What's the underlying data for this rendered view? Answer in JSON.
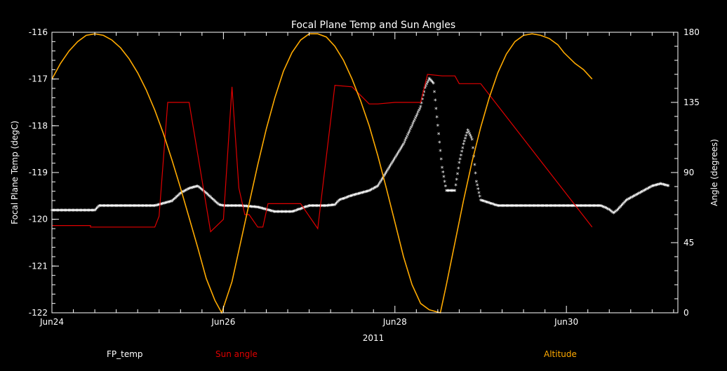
{
  "chart_data": {
    "type": "line",
    "title": "Focal Plane Temp and Sun Angles",
    "xlabel": "2011",
    "ylabel_left": "Focal Plane Temp (degC)",
    "ylabel_right": "Angle (degrees)",
    "xlim": [
      0,
      7.3
    ],
    "ylim_left": [
      -122,
      -116
    ],
    "ylim_right": [
      0,
      180
    ],
    "x_ticks": [
      {
        "x": 0,
        "label": "Jun24"
      },
      {
        "x": 2,
        "label": "Jun26"
      },
      {
        "x": 4,
        "label": "Jun28"
      },
      {
        "x": 6,
        "label": "Jun30"
      }
    ],
    "y_ticks_left": [
      "-116",
      "-117",
      "-118",
      "-119",
      "-120",
      "-121",
      "-122"
    ],
    "y_ticks_right": [
      "180",
      "135",
      "90",
      "45",
      "0"
    ],
    "legend": [
      "FP_temp",
      "Sun angle",
      "Altitude"
    ],
    "colors": {
      "fp_temp": "#ffffff",
      "sun_angle": "#e00000",
      "altitude": "#ffaa00",
      "axes": "#ffffff"
    },
    "series": [
      {
        "name": "FP_temp",
        "axis": "left",
        "style": "markers",
        "x": [
          0,
          0.25,
          0.5,
          0.55,
          0.7,
          1.0,
          1.2,
          1.4,
          1.5,
          1.6,
          1.7,
          1.8,
          1.9,
          1.95,
          2.0,
          2.2,
          2.4,
          2.5,
          2.6,
          2.8,
          3.0,
          3.2,
          3.3,
          3.35,
          3.5,
          3.7,
          3.8,
          4.0,
          4.1,
          4.2,
          4.3,
          4.35,
          4.4,
          4.45,
          4.5,
          4.55,
          4.6,
          4.7,
          4.75,
          4.8,
          4.85,
          4.9,
          4.95,
          5.0,
          5.2,
          5.5,
          6.0,
          6.4,
          6.5,
          6.55,
          6.6,
          6.7,
          6.8,
          6.9,
          7.0,
          7.1,
          7.2
        ],
        "y": [
          -119.82,
          -119.82,
          -119.82,
          -119.72,
          -119.72,
          -119.72,
          -119.72,
          -119.62,
          -119.45,
          -119.35,
          -119.3,
          -119.45,
          -119.62,
          -119.7,
          -119.72,
          -119.72,
          -119.75,
          -119.8,
          -119.85,
          -119.85,
          -119.72,
          -119.72,
          -119.7,
          -119.6,
          -119.5,
          -119.4,
          -119.3,
          -118.7,
          -118.4,
          -118.0,
          -117.6,
          -117.2,
          -117.0,
          -117.1,
          -118.0,
          -118.9,
          -119.4,
          -119.4,
          -118.8,
          -118.4,
          -118.1,
          -118.3,
          -119.2,
          -119.6,
          -119.72,
          -119.72,
          -119.72,
          -119.72,
          -119.8,
          -119.88,
          -119.8,
          -119.6,
          -119.5,
          -119.4,
          -119.3,
          -119.25,
          -119.3
        ]
      },
      {
        "name": "Sun angle",
        "axis": "right",
        "style": "steps",
        "x": [
          0,
          0.45,
          0.45,
          1.0,
          1.1,
          1.1,
          1.2,
          1.2,
          1.25,
          1.25,
          1.35,
          1.35,
          1.6,
          1.6,
          1.85,
          1.85,
          2.0,
          2.0,
          2.1,
          2.1,
          2.18,
          2.18,
          2.25,
          2.25,
          2.3,
          2.3,
          2.4,
          2.4,
          2.46,
          2.46,
          2.52,
          2.52,
          2.9,
          2.9,
          3.1,
          3.1,
          3.3,
          3.3,
          3.5,
          3.5,
          3.7,
          3.7,
          3.8,
          3.8,
          4.0,
          4.0,
          4.3,
          4.3,
          4.38,
          4.38,
          4.55,
          4.55,
          4.6,
          4.6,
          4.7,
          4.7,
          4.75,
          4.75,
          4.8,
          4.8,
          5.0,
          5.0,
          6.3
        ],
        "y": [
          56,
          56,
          55,
          55,
          55,
          55,
          55,
          55,
          62,
          62,
          135,
          135,
          135,
          135,
          52,
          52,
          60,
          60,
          145,
          145,
          80,
          80,
          63,
          63,
          63,
          63,
          55,
          55,
          55,
          55,
          70,
          70,
          70,
          70,
          54,
          54,
          146,
          146,
          145,
          145,
          134,
          134,
          134,
          134,
          135,
          135,
          135,
          135,
          153,
          153,
          152,
          152,
          152,
          152,
          152,
          152,
          147,
          147,
          147,
          147,
          147,
          147,
          55
        ]
      },
      {
        "name": "Altitude",
        "axis": "right",
        "style": "line",
        "x": [
          0,
          0.1,
          0.2,
          0.3,
          0.4,
          0.5,
          0.6,
          0.7,
          0.8,
          0.9,
          1.0,
          1.1,
          1.2,
          1.3,
          1.4,
          1.5,
          1.6,
          1.7,
          1.8,
          1.9,
          1.98,
          2.1,
          2.2,
          2.3,
          2.4,
          2.5,
          2.6,
          2.7,
          2.8,
          2.9,
          3.0,
          3.1,
          3.2,
          3.3,
          3.4,
          3.5,
          3.6,
          3.7,
          3.8,
          3.9,
          4.0,
          4.1,
          4.2,
          4.3,
          4.4,
          4.53,
          4.6,
          4.7,
          4.8,
          4.9,
          5.0,
          5.1,
          5.2,
          5.3,
          5.4,
          5.5,
          5.6,
          5.7,
          5.8,
          5.9,
          5.97,
          6.1,
          6.2,
          6.3
        ],
        "y": [
          150,
          160,
          168,
          174,
          178,
          179,
          178,
          175,
          170,
          163,
          154,
          143,
          130,
          115,
          98,
          80,
          61,
          42,
          22,
          8,
          0,
          20,
          45,
          70,
          95,
          118,
          138,
          155,
          167,
          175,
          179,
          179,
          177,
          171,
          162,
          150,
          136,
          120,
          101,
          80,
          58,
          36,
          18,
          6,
          2,
          0,
          18,
          45,
          72,
          97,
          119,
          138,
          154,
          166,
          174,
          178,
          179,
          178,
          176,
          172,
          167,
          160,
          156,
          150
        ]
      }
    ]
  }
}
